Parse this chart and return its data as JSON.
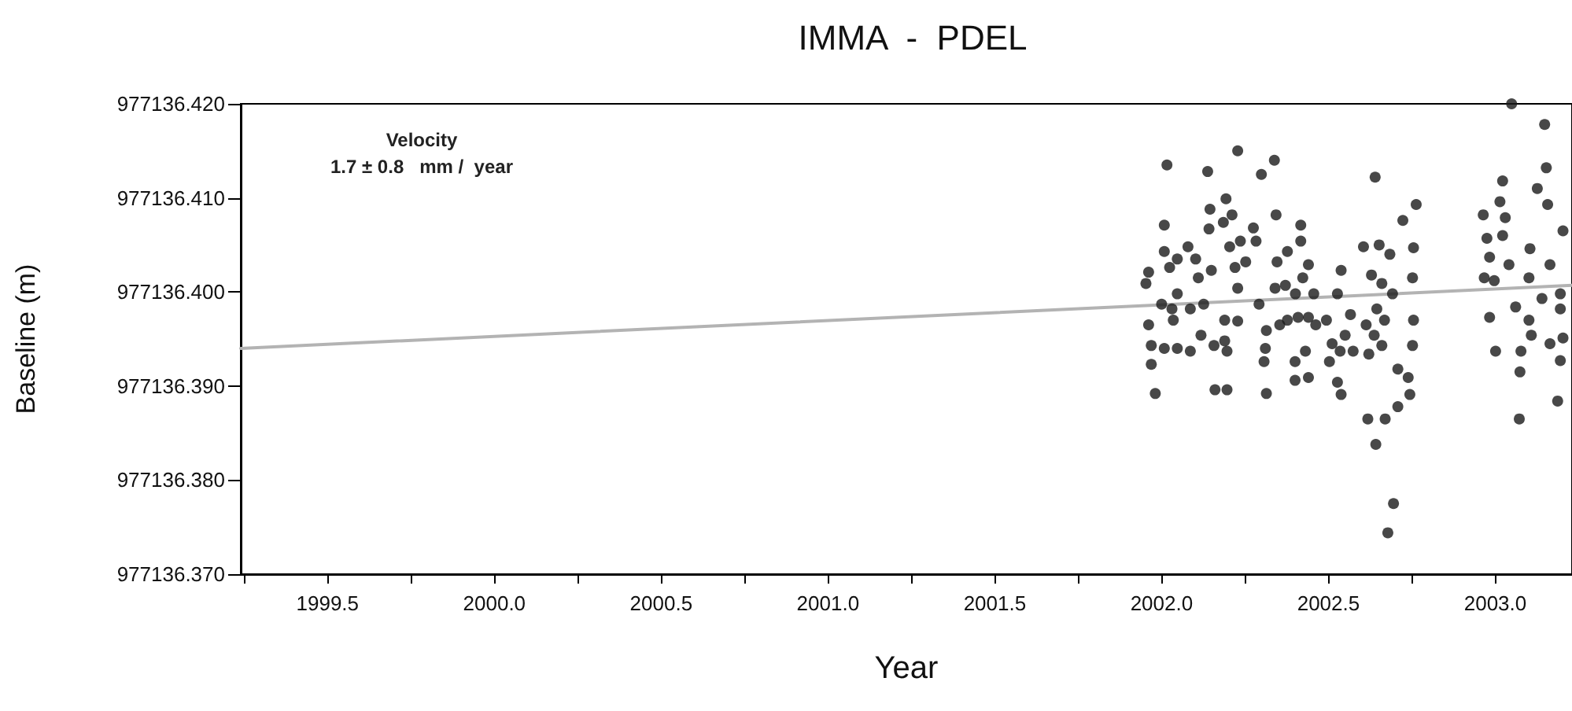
{
  "chart_data": {
    "type": "scatter",
    "title": "IMMA  -  PDEL",
    "xlabel": "Year",
    "ylabel": "Baseline (m)",
    "annotations": [
      "Velocity",
      "1.7 ± 0.8   mm /  year"
    ],
    "xlim": [
      1999.24,
      2003.23
    ],
    "xticks": [
      {
        "value": 1999.25,
        "label": null
      },
      {
        "value": 1999.5,
        "label": "1999.5"
      },
      {
        "value": 1999.75,
        "label": null
      },
      {
        "value": 2000,
        "label": "2000.0"
      },
      {
        "value": 2000.25,
        "label": null
      },
      {
        "value": 2000.5,
        "label": "2000.5"
      },
      {
        "value": 2000.75,
        "label": null
      },
      {
        "value": 2001,
        "label": "2001.0"
      },
      {
        "value": 2001.25,
        "label": null
      },
      {
        "value": 2001.5,
        "label": "2001.5"
      },
      {
        "value": 2001.75,
        "label": null
      },
      {
        "value": 2002,
        "label": "2002.0"
      },
      {
        "value": 2002.25,
        "label": null
      },
      {
        "value": 2002.5,
        "label": "2002.5"
      },
      {
        "value": 2002.75,
        "label": null
      },
      {
        "value": 2003,
        "label": "2003.0"
      }
    ],
    "ylim": [
      977136.37,
      977136.42
    ],
    "yticks": [
      {
        "value": 977136.37,
        "label": "977136.370"
      },
      {
        "value": 977136.38,
        "label": "977136.380"
      },
      {
        "value": 977136.39,
        "label": "977136.390"
      },
      {
        "value": 977136.4,
        "label": "977136.400"
      },
      {
        "value": 977136.41,
        "label": "977136.410"
      },
      {
        "value": 977136.42,
        "label": "977136.420"
      }
    ],
    "grid": false,
    "marker": "circle",
    "series": [
      {
        "type": "line",
        "color": "#b3b3b3",
        "marker": "none",
        "line_style": "solid",
        "x": [
          1999.24,
          2003.23
        ],
        "values": [
          977136.394,
          977136.4007
        ]
      },
      {
        "type": "scatter",
        "color": "#1a1a1a",
        "x": [
          2002.016,
          2002.138,
          2002.228,
          2002.299,
          2002.338,
          2002.64,
          2002.763,
          2002.723,
          2002.755,
          2002.752,
          2002.755,
          2002.752,
          2002.708,
          2002.739,
          2002.744,
          2002.708,
          2002.67,
          2002.618,
          2002.642,
          2002.695,
          2002.678,
          2002.605,
          2002.652,
          2002.684,
          2002.629,
          2002.66,
          2002.692,
          2002.645,
          2002.668,
          2002.613,
          2002.637,
          2002.621,
          2002.66,
          2002.566,
          2002.538,
          2002.527,
          2002.494,
          2002.511,
          2002.535,
          2002.503,
          2002.527,
          2002.538,
          2002.55,
          2002.574,
          2002.44,
          2002.4,
          2002.4,
          2002.431,
          2002.462,
          2002.44,
          2002.409,
          2002.377,
          2002.314,
          2002.307,
          2002.311,
          2002.314,
          2002.354,
          2002.292,
          2002.34,
          2002.371,
          2002.401,
          2002.456,
          2002.423,
          2002.44,
          2002.346,
          2002.377,
          2002.417,
          2002.417,
          2002.343,
          2002.283,
          2002.275,
          2002.236,
          2002.252,
          2002.211,
          2002.193,
          2002.185,
          2002.204,
          2002.22,
          2002.228,
          2002.189,
          2002.228,
          2002.189,
          2002.196,
          2002.157,
          2002.16,
          2002.196,
          2002.145,
          2002.142,
          2002.149,
          2002.11,
          2002.126,
          2002.086,
          2002.086,
          2002.118,
          2002.079,
          2002.102,
          2002.047,
          2002.008,
          2002.008,
          2002.024,
          2002,
          2002.031,
          2002.035,
          2002.047,
          2002.008,
          2001.969,
          2001.969,
          2001.961,
          2001.953,
          2001.961,
          2001.981,
          2002.047,
          2003.049,
          2003.148,
          2003.153,
          2003.126,
          2003.157,
          2003.022,
          2003.014,
          2002.964,
          2003.03,
          2003.022,
          2002.975,
          2002.983,
          2002.967,
          2002.997,
          2003.041,
          2003.104,
          2003.164,
          2003.203,
          2003.101,
          2003.14,
          2003.195,
          2003.195,
          2003.061,
          2002.983,
          2003.101,
          2003.108,
          2003.077,
          2003.203,
          2003.164,
          2003.001,
          2003.195,
          2003.074,
          2003.072,
          2003.187
        ],
        "values": [
          977136.4135,
          977136.4128,
          977136.415,
          977136.4125,
          977136.414,
          977136.4122,
          977136.4093,
          977136.4076,
          977136.4047,
          977136.4015,
          977136.397,
          977136.3943,
          977136.3918,
          977136.3909,
          977136.3891,
          977136.3878,
          977136.3865,
          977136.3865,
          977136.3838,
          977136.3775,
          977136.3744,
          977136.4048,
          977136.405,
          977136.404,
          977136.4018,
          977136.4009,
          977136.3998,
          977136.3982,
          977136.397,
          977136.3965,
          977136.3954,
          977136.3934,
          977136.3943,
          977136.3976,
          977136.4023,
          977136.3998,
          977136.397,
          977136.3945,
          977136.3937,
          977136.3926,
          977136.3904,
          977136.3891,
          977136.3954,
          977136.3937,
          977136.3909,
          977136.3906,
          977136.3926,
          977136.3937,
          977136.3965,
          977136.3973,
          977136.3973,
          977136.397,
          977136.3892,
          977136.3926,
          977136.394,
          977136.3959,
          977136.3965,
          977136.3987,
          977136.4004,
          977136.4007,
          977136.3998,
          977136.3998,
          977136.4015,
          977136.4029,
          977136.4032,
          977136.4043,
          977136.4071,
          977136.4054,
          977136.4082,
          977136.4054,
          977136.4068,
          977136.4054,
          977136.4032,
          977136.4082,
          977136.4099,
          977136.4074,
          977136.4048,
          977136.4026,
          977136.4004,
          977136.397,
          977136.3969,
          977136.3948,
          977136.3937,
          977136.3943,
          977136.3896,
          977136.3896,
          977136.4088,
          977136.4067,
          977136.4023,
          977136.4015,
          977136.3987,
          977136.3982,
          977136.3937,
          977136.3954,
          977136.4048,
          977136.4035,
          977136.4035,
          977136.4071,
          977136.4043,
          977136.4026,
          977136.3987,
          977136.3982,
          977136.397,
          977136.3998,
          977136.394,
          977136.3923,
          977136.3943,
          977136.3965,
          977136.4009,
          977136.4021,
          977136.3892,
          977136.394,
          977136.42,
          977136.4178,
          977136.4132,
          977136.411,
          977136.4093,
          977136.4118,
          977136.4096,
          977136.4082,
          977136.4079,
          977136.406,
          977136.4057,
          977136.4037,
          977136.4015,
          977136.4012,
          977136.4029,
          977136.4046,
          977136.4029,
          977136.4065,
          977136.4015,
          977136.3993,
          977136.3998,
          977136.3982,
          977136.3984,
          977136.3973,
          977136.397,
          977136.3954,
          977136.3937,
          977136.3951,
          977136.3945,
          977136.3937,
          977136.3927,
          977136.3915,
          977136.3865,
          977136.3884
        ]
      }
    ]
  }
}
